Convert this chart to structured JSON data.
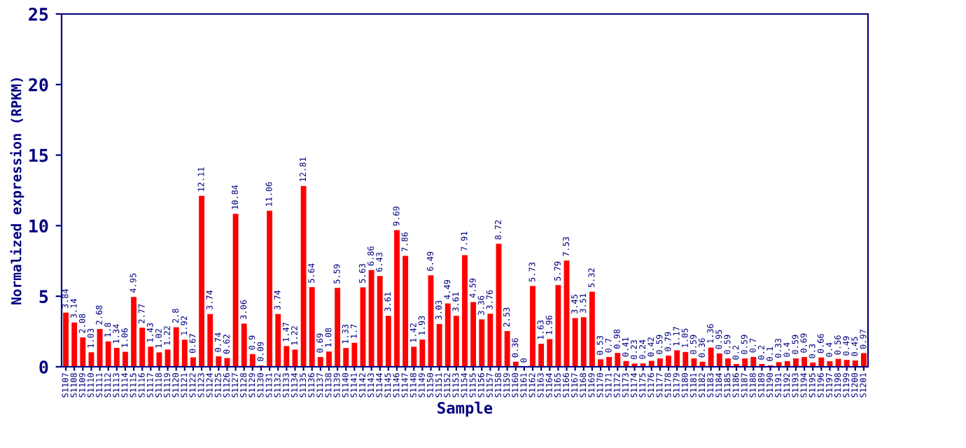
{
  "chart_data": {
    "type": "bar",
    "xlabel": "Sample",
    "ylabel": "Normalized expression (RPKM)",
    "categories": [
      "S1107",
      "S1108",
      "S1109",
      "S1110",
      "S1111",
      "S1112",
      "S1113",
      "S1114",
      "S1115",
      "S1116",
      "S1117",
      "S1118",
      "S1119",
      "S1120",
      "S1121",
      "S1122",
      "S1123",
      "S1124",
      "S1125",
      "S1126",
      "S1127",
      "S1128",
      "S1129",
      "S1130",
      "S1131",
      "S1132",
      "S1133",
      "S1134",
      "S1135",
      "S1136",
      "S1137",
      "S1138",
      "S1139",
      "S1140",
      "S1141",
      "S1142",
      "S1143",
      "S1144",
      "S1145",
      "S1146",
      "S1147",
      "S1148",
      "S1149",
      "S1150",
      "S1151",
      "S1152",
      "S1153",
      "S1154",
      "S1155",
      "S1156",
      "S1157",
      "S1158",
      "S1159",
      "S1160",
      "S1161",
      "S1162",
      "S1163",
      "S1164",
      "S1165",
      "S1166",
      "S1167",
      "S1168",
      "S1169",
      "S1170",
      "S1171",
      "S1172",
      "S1173",
      "S1174",
      "S1175",
      "S1176",
      "S1177",
      "S1178",
      "S1179",
      "S1180",
      "S1181",
      "S1182",
      "S1183",
      "S1184",
      "S1185",
      "S1186",
      "S1187",
      "S1188",
      "S1189",
      "S1190",
      "S1191",
      "S1192",
      "S1193",
      "S1194",
      "S1195",
      "S1196",
      "S1197",
      "S1198",
      "S1199",
      "S1200",
      "S1201"
    ],
    "values": [
      3.84,
      3.14,
      2.08,
      1.03,
      2.68,
      1.8,
      1.34,
      1.06,
      4.95,
      2.77,
      1.43,
      1.02,
      1.22,
      2.8,
      1.92,
      0.67,
      12.11,
      3.74,
      0.74,
      0.62,
      10.84,
      3.06,
      0.9,
      0.09,
      11.06,
      3.74,
      1.47,
      1.22,
      12.81,
      5.64,
      0.69,
      1.08,
      5.59,
      1.33,
      1.7,
      5.63,
      6.86,
      6.43,
      3.61,
      9.69,
      7.86,
      1.42,
      1.93,
      6.49,
      3.03,
      4.49,
      3.61,
      7.91,
      4.59,
      3.36,
      3.76,
      8.72,
      2.53,
      0.36,
      0,
      5.73,
      1.63,
      1.96,
      5.79,
      7.53,
      3.45,
      3.51,
      5.32,
      0.53,
      0.7,
      0.98,
      0.41,
      0.23,
      0.24,
      0.42,
      0.59,
      0.79,
      1.17,
      1.05,
      0.59,
      0.36,
      1.36,
      0.95,
      0.59,
      0.2,
      0.59,
      0.7,
      0.2,
      0.1,
      0.33,
      0.4,
      0.59,
      0.69,
      0.3,
      0.66,
      0.4,
      0.56,
      0.49,
      0.45,
      0.97
    ],
    "color": "#ff0000",
    "ylim": [
      0,
      25
    ],
    "yticks": [
      0,
      5,
      10,
      15,
      20,
      25
    ],
    "data_labels": true,
    "grid": false
  }
}
